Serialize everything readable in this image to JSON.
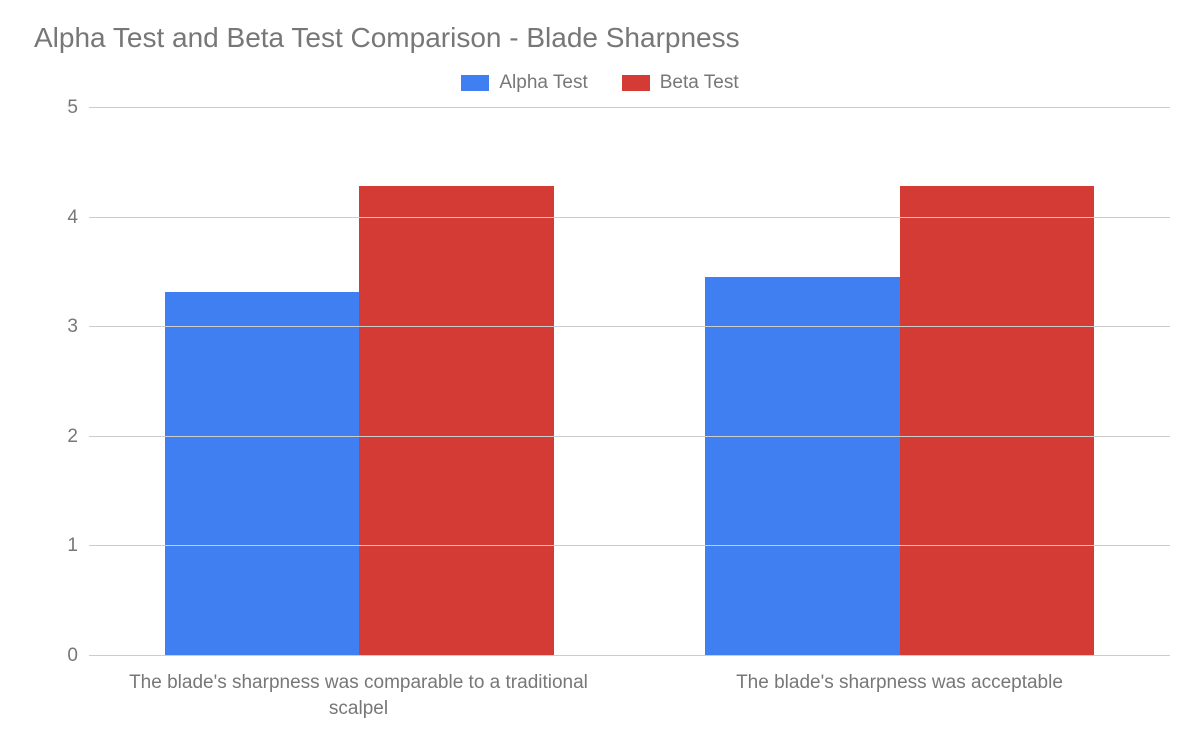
{
  "chart": {
    "type": "bar",
    "title": "Alpha Test and Beta Test Comparison - Blade Sharpness",
    "title_fontsize": 28,
    "title_color": "#777777",
    "background_color": "#ffffff",
    "series": [
      {
        "name": "Alpha Test",
        "color": "#3f7ff2",
        "values": [
          3.32,
          3.46
        ]
      },
      {
        "name": "Beta Test",
        "color": "#d43b35",
        "values": [
          4.29,
          4.29
        ]
      }
    ],
    "categories": [
      "The blade's sharpness was comparable to a traditional scalpel",
      "The blade's sharpness was acceptable"
    ],
    "ylim": [
      0,
      5
    ],
    "ytick_step": 1,
    "grid_color": "#cccccc",
    "axis_text_color": "#777777",
    "legend_text_color": "#777777",
    "label_fontsize": 19,
    "bar_group_width": 0.72
  }
}
